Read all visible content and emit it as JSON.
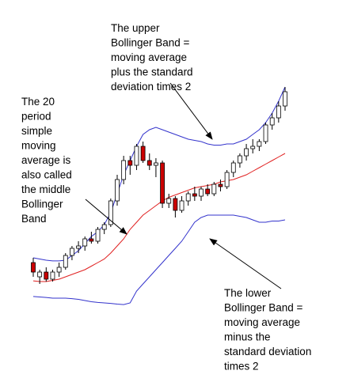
{
  "chart_data": {
    "type": "candlestick",
    "ylim": [
      0,
      100
    ],
    "up_color": "#ffffff",
    "down_color": "#cc0000",
    "open": [
      21,
      15,
      17,
      14,
      17,
      19,
      24,
      27,
      28,
      31,
      30,
      35,
      37,
      47,
      56,
      64,
      62,
      70,
      64,
      62,
      63,
      46,
      48,
      43,
      47,
      50,
      49,
      52,
      50,
      54,
      53,
      59,
      63,
      66,
      69,
      70,
      72,
      79,
      82,
      87
    ],
    "high": [
      23,
      18,
      19,
      18,
      21,
      25,
      28,
      30,
      32,
      34,
      36,
      38,
      48,
      58,
      66,
      66,
      71,
      72,
      67,
      65,
      64,
      50,
      49,
      49,
      51,
      53,
      53,
      54,
      55,
      56,
      60,
      64,
      67,
      71,
      73,
      73,
      80,
      84,
      89,
      95
    ],
    "low": [
      15,
      12,
      13,
      13,
      15,
      18,
      22,
      25,
      26,
      29,
      29,
      33,
      36,
      45,
      54,
      58,
      60,
      63,
      60,
      57,
      44,
      44,
      40,
      42,
      45,
      47,
      47,
      49,
      49,
      51,
      52,
      57,
      61,
      64,
      67,
      68,
      71,
      77,
      80,
      85
    ],
    "close": [
      17,
      17,
      14,
      17,
      19,
      24,
      27,
      28,
      31,
      30,
      35,
      37,
      47,
      56,
      64,
      62,
      70,
      64,
      62,
      63,
      46,
      48,
      43,
      47,
      50,
      49,
      52,
      50,
      54,
      53,
      59,
      63,
      66,
      69,
      70,
      72,
      79,
      82,
      87,
      93
    ],
    "bands": [
      {
        "color": "#3333cc",
        "values": [
          23,
          22.5,
          22,
          21.7,
          21.7,
          22,
          24,
          26,
          29,
          32,
          34,
          37,
          42,
          50,
          58,
          64,
          70,
          75,
          77,
          78,
          77,
          76,
          75,
          74,
          73,
          72.5,
          72,
          71,
          70.5,
          70.5,
          71,
          71,
          72,
          73,
          75,
          77,
          80,
          84,
          89,
          95
        ]
      },
      {
        "color": "#e02020",
        "values": [
          13.3,
          13,
          13,
          13.5,
          14,
          15,
          16,
          17,
          18,
          19.5,
          21,
          22.5,
          25,
          28,
          31,
          35,
          38,
          41,
          43,
          45,
          47,
          48.5,
          49.5,
          50.5,
          51.5,
          52.5,
          53,
          53.5,
          54,
          55,
          55.5,
          56,
          57,
          58,
          59.5,
          61,
          62.5,
          64,
          65.5,
          67
        ]
      },
      {
        "color": "#3333cc",
        "values": [
          6.7,
          6.5,
          6.3,
          6,
          6,
          6,
          5.8,
          5.5,
          5,
          4.5,
          4.2,
          4,
          3.8,
          3.5,
          3.3,
          4,
          9,
          12,
          15,
          18,
          21,
          24,
          27,
          30,
          34,
          38,
          40,
          41,
          41,
          41,
          41,
          41,
          40.5,
          40,
          39,
          38,
          38,
          38.5,
          38.5,
          39
        ]
      }
    ],
    "annotations": [
      {
        "lines": [
          "The upper",
          "Bollinger Band =",
          "moving average",
          "plus the standard",
          "deviation times 2"
        ]
      },
      {
        "lines": [
          "The 20",
          "period",
          "simple",
          "moving",
          "average is",
          "also called",
          "the middle",
          "Bollinger",
          "Band"
        ]
      },
      {
        "lines": [
          "The lower",
          "Bollinger Band =",
          "moving average",
          "minus the",
          "standard deviation",
          "times 2"
        ]
      }
    ]
  }
}
